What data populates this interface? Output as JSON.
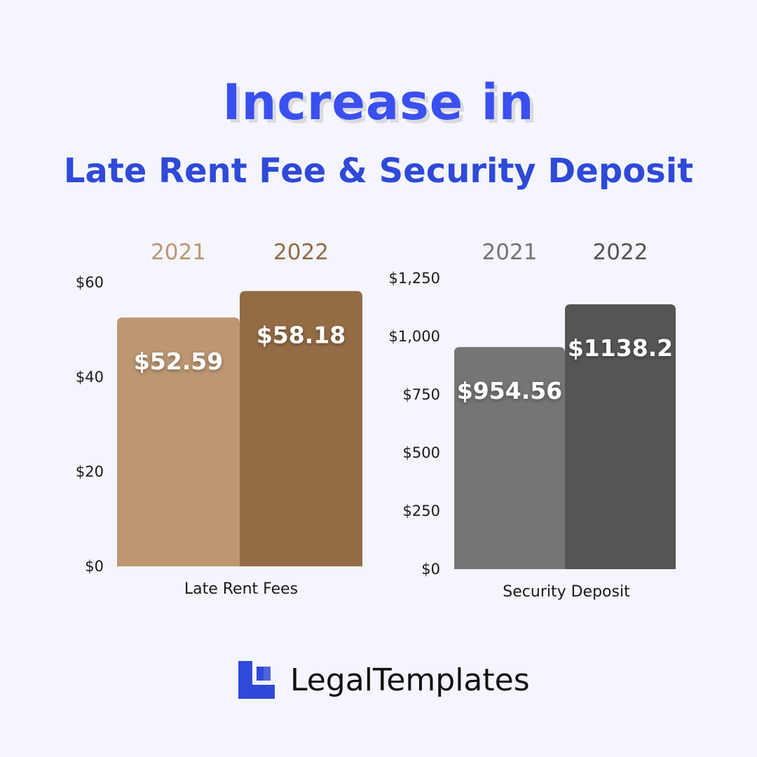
{
  "header": {
    "title_line1": "Increase in",
    "title_line2": "Late Rent Fee & Security Deposit"
  },
  "brand": {
    "name": "LegalTemplates",
    "icon": "document-icon",
    "color": "#2f4ad8"
  },
  "chart_data": [
    {
      "type": "bar",
      "categories": [
        "Late Rent Fees"
      ],
      "series": [
        {
          "name": "2021",
          "values": [
            52.59
          ],
          "label": "$52.59",
          "color": "#bc9772"
        },
        {
          "name": "2022",
          "values": [
            58.18
          ],
          "label": "$58.18",
          "color": "#936c45"
        }
      ],
      "xlabel": "Late Rent Fees",
      "ylim": [
        0,
        60
      ],
      "yticks": [
        0,
        20,
        40,
        60
      ],
      "ytick_labels": [
        "$0",
        "$20",
        "$40",
        "$60"
      ],
      "legend_position": "top",
      "grid": false
    },
    {
      "type": "bar",
      "categories": [
        "Security Deposit"
      ],
      "series": [
        {
          "name": "2021",
          "values": [
            954.56
          ],
          "label": "$954.56",
          "color": "#757575"
        },
        {
          "name": "2022",
          "values": [
            1138.2
          ],
          "label": "$1138.2",
          "color": "#555555"
        }
      ],
      "xlabel": "Security Deposit",
      "ylim": [
        0,
        1250
      ],
      "yticks": [
        0,
        250,
        500,
        750,
        1000,
        1250
      ],
      "ytick_labels": [
        "$0",
        "$250",
        "$500",
        "$750",
        "$1,000",
        "$1,250"
      ],
      "legend_position": "top",
      "grid": false
    }
  ]
}
